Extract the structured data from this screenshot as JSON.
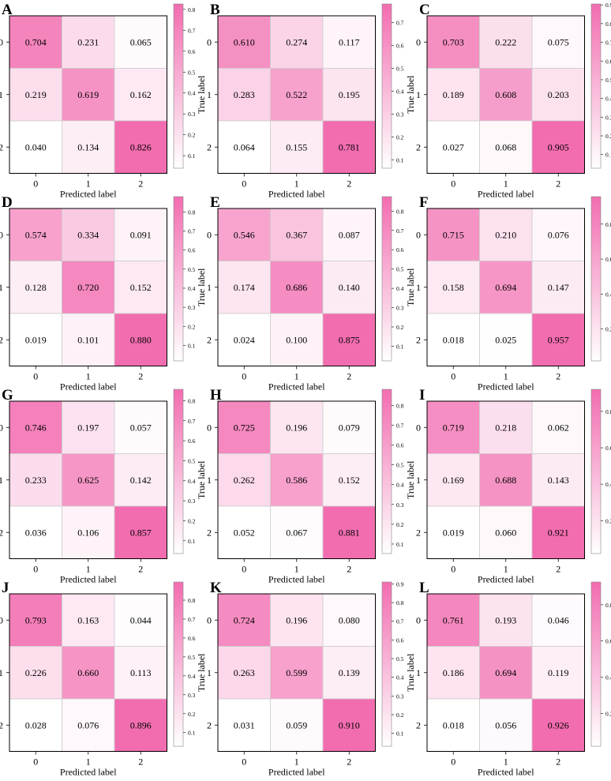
{
  "colors": {
    "max": "#f26db0",
    "min": "#ffffff",
    "grid": "#cccccc"
  },
  "common": {
    "xlabel": "Predicted label",
    "ylabel": "True label",
    "tick_labels": [
      "0",
      "1",
      "2"
    ]
  },
  "chart_data": [
    {
      "panel": "A",
      "type": "heatmap",
      "values": [
        [
          0.704,
          0.231,
          0.065
        ],
        [
          0.219,
          0.619,
          0.162
        ],
        [
          0.04,
          0.134,
          0.826
        ]
      ],
      "colorbar": {
        "min": 0.04,
        "max": 0.826,
        "ticks": [
          0.1,
          0.2,
          0.3,
          0.4,
          0.5,
          0.6,
          0.7,
          0.8
        ]
      }
    },
    {
      "panel": "B",
      "type": "heatmap",
      "values": [
        [
          0.61,
          0.274,
          0.117
        ],
        [
          0.283,
          0.522,
          0.195
        ],
        [
          0.064,
          0.155,
          0.781
        ]
      ],
      "colorbar": {
        "min": 0.064,
        "max": 0.781,
        "ticks": [
          0.1,
          0.2,
          0.3,
          0.4,
          0.5,
          0.6,
          0.7
        ]
      }
    },
    {
      "panel": "C",
      "type": "heatmap",
      "values": [
        [
          0.703,
          0.222,
          0.075
        ],
        [
          0.189,
          0.608,
          0.203
        ],
        [
          0.027,
          0.068,
          0.905
        ]
      ],
      "colorbar": {
        "min": 0.027,
        "max": 0.905,
        "ticks": [
          0.1,
          0.2,
          0.3,
          0.4,
          0.5,
          0.6,
          0.7,
          0.8,
          0.9
        ]
      }
    },
    {
      "panel": "D",
      "type": "heatmap",
      "values": [
        [
          0.574,
          0.334,
          0.091
        ],
        [
          0.128,
          0.72,
          0.152
        ],
        [
          0.019,
          0.101,
          0.88
        ]
      ],
      "colorbar": {
        "min": 0.019,
        "max": 0.88,
        "ticks": [
          0.1,
          0.2,
          0.3,
          0.4,
          0.5,
          0.6,
          0.7,
          0.8
        ]
      }
    },
    {
      "panel": "E",
      "type": "heatmap",
      "values": [
        [
          0.546,
          0.367,
          0.087
        ],
        [
          0.174,
          0.686,
          0.14
        ],
        [
          0.024,
          0.1,
          0.875
        ]
      ],
      "colorbar": {
        "min": 0.024,
        "max": 0.875,
        "ticks": [
          0.1,
          0.2,
          0.3,
          0.4,
          0.5,
          0.6,
          0.7,
          0.8
        ]
      }
    },
    {
      "panel": "F",
      "type": "heatmap",
      "values": [
        [
          0.715,
          0.21,
          0.076
        ],
        [
          0.158,
          0.694,
          0.147
        ],
        [
          0.018,
          0.025,
          0.957
        ]
      ],
      "colorbar": {
        "min": 0.018,
        "max": 0.957,
        "ticks": [
          0.2,
          0.4,
          0.6,
          0.8
        ]
      }
    },
    {
      "panel": "G",
      "type": "heatmap",
      "values": [
        [
          0.746,
          0.197,
          0.057
        ],
        [
          0.233,
          0.625,
          0.142
        ],
        [
          0.036,
          0.106,
          0.857
        ]
      ],
      "colorbar": {
        "min": 0.036,
        "max": 0.857,
        "ticks": [
          0.1,
          0.2,
          0.3,
          0.4,
          0.5,
          0.6,
          0.7,
          0.8
        ]
      }
    },
    {
      "panel": "H",
      "type": "heatmap",
      "values": [
        [
          0.725,
          0.196,
          0.079
        ],
        [
          0.262,
          0.586,
          0.152
        ],
        [
          0.052,
          0.067,
          0.881
        ]
      ],
      "colorbar": {
        "min": 0.052,
        "max": 0.881,
        "ticks": [
          0.1,
          0.2,
          0.3,
          0.4,
          0.5,
          0.6,
          0.7,
          0.8
        ]
      }
    },
    {
      "panel": "I",
      "type": "heatmap",
      "values": [
        [
          0.719,
          0.218,
          0.062
        ],
        [
          0.169,
          0.688,
          0.143
        ],
        [
          0.019,
          0.06,
          0.921
        ]
      ],
      "colorbar": {
        "min": 0.019,
        "max": 0.921,
        "ticks": [
          0.2,
          0.4,
          0.6,
          0.8
        ]
      }
    },
    {
      "panel": "J",
      "type": "heatmap",
      "values": [
        [
          0.793,
          0.163,
          0.044
        ],
        [
          0.226,
          0.66,
          0.113
        ],
        [
          0.028,
          0.076,
          0.896
        ]
      ],
      "colorbar": {
        "min": 0.028,
        "max": 0.896,
        "ticks": [
          0.1,
          0.2,
          0.3,
          0.4,
          0.5,
          0.6,
          0.7,
          0.8
        ]
      }
    },
    {
      "panel": "K",
      "type": "heatmap",
      "values": [
        [
          0.724,
          0.196,
          0.08
        ],
        [
          0.263,
          0.599,
          0.139
        ],
        [
          0.031,
          0.059,
          0.91
        ]
      ],
      "colorbar": {
        "min": 0.031,
        "max": 0.91,
        "ticks": [
          0.1,
          0.2,
          0.3,
          0.4,
          0.5,
          0.6,
          0.7,
          0.8,
          0.9
        ]
      }
    },
    {
      "panel": "L",
      "type": "heatmap",
      "values": [
        [
          0.761,
          0.193,
          0.046
        ],
        [
          0.186,
          0.694,
          0.119
        ],
        [
          0.018,
          0.056,
          0.926
        ]
      ],
      "colorbar": {
        "min": 0.018,
        "max": 0.926,
        "ticks": [
          0.2,
          0.4,
          0.6,
          0.8
        ]
      }
    }
  ]
}
